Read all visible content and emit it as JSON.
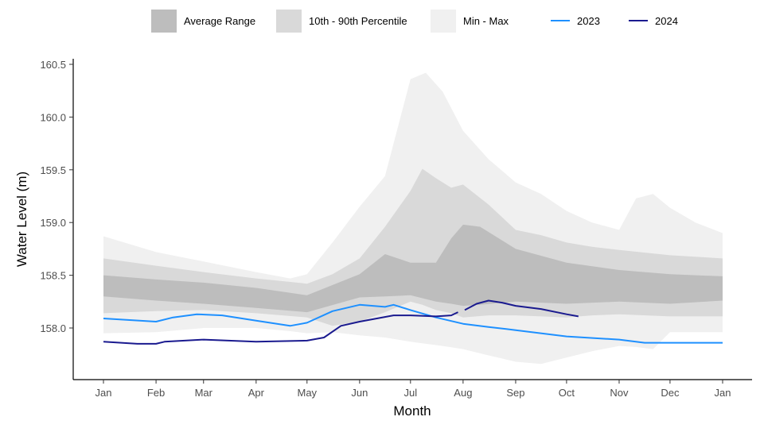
{
  "chart_data": {
    "type": "area",
    "title": "",
    "xlabel": "Month",
    "ylabel": "Water Level (m)",
    "x_unit": "day of year",
    "xlim": [
      0,
      365
    ],
    "ylim": [
      157.51,
      160.55
    ],
    "grid": false,
    "legend_position": "top",
    "x_ticks": [
      {
        "day": 0,
        "label": "Jan"
      },
      {
        "day": 31,
        "label": "Feb"
      },
      {
        "day": 59,
        "label": "Mar"
      },
      {
        "day": 90,
        "label": "Apr"
      },
      {
        "day": 120,
        "label": "May"
      },
      {
        "day": 151,
        "label": "Jun"
      },
      {
        "day": 181,
        "label": "Jul"
      },
      {
        "day": 212,
        "label": "Aug"
      },
      {
        "day": 243,
        "label": "Sep"
      },
      {
        "day": 273,
        "label": "Oct"
      },
      {
        "day": 304,
        "label": "Nov"
      },
      {
        "day": 334,
        "label": "Dec"
      },
      {
        "day": 365,
        "label": "Jan"
      }
    ],
    "y_ticks": [
      {
        "value": 158.0,
        "label": "158.0"
      },
      {
        "value": 158.5,
        "label": "158.5"
      },
      {
        "value": 159.0,
        "label": "159.0"
      },
      {
        "value": 159.5,
        "label": "159.5"
      },
      {
        "value": 160.0,
        "label": "160.0"
      },
      {
        "value": 160.5,
        "label": "160.5"
      }
    ],
    "bands": [
      {
        "name": "Min - Max",
        "color": "#f0f0f0",
        "x": [
          0,
          31,
          59,
          90,
          110,
          120,
          135,
          151,
          166,
          181,
          190,
          200,
          212,
          227,
          243,
          258,
          273,
          288,
          304,
          314,
          324,
          334,
          349,
          365
        ],
        "upper": [
          158.87,
          158.72,
          158.63,
          158.53,
          158.47,
          158.51,
          158.81,
          159.15,
          159.44,
          160.36,
          160.42,
          160.24,
          159.87,
          159.6,
          159.38,
          159.27,
          159.11,
          159.0,
          158.93,
          159.23,
          159.27,
          159.14,
          159.0,
          158.9
        ],
        "lower": [
          157.95,
          157.96,
          158.0,
          158.0,
          157.97,
          157.95,
          157.96,
          157.93,
          157.91,
          157.87,
          157.85,
          157.83,
          157.8,
          157.74,
          157.68,
          157.66,
          157.72,
          157.78,
          157.83,
          157.82,
          157.8,
          157.96,
          157.96,
          157.96
        ]
      },
      {
        "name": "10th - 90th Percentile",
        "color": "#d9d9d9",
        "x": [
          0,
          31,
          59,
          90,
          120,
          135,
          151,
          166,
          181,
          188,
          196,
          205,
          212,
          227,
          243,
          258,
          273,
          288,
          304,
          334,
          365
        ],
        "upper": [
          158.66,
          158.59,
          158.53,
          158.47,
          158.42,
          158.51,
          158.66,
          158.96,
          159.3,
          159.51,
          159.42,
          159.33,
          159.36,
          159.17,
          158.93,
          158.88,
          158.81,
          158.77,
          158.74,
          158.69,
          158.66
        ],
        "lower": [
          158.14,
          158.16,
          158.17,
          158.14,
          158.1,
          158.02,
          158.06,
          158.15,
          158.25,
          158.22,
          158.17,
          158.14,
          158.1,
          158.12,
          158.12,
          158.11,
          158.1,
          158.12,
          158.13,
          158.11,
          158.11
        ]
      },
      {
        "name": "Average Range",
        "color": "#bdbdbd",
        "x": [
          0,
          31,
          59,
          90,
          120,
          151,
          166,
          181,
          196,
          205,
          212,
          222,
          243,
          273,
          304,
          334,
          365
        ],
        "upper": [
          158.5,
          158.46,
          158.43,
          158.38,
          158.31,
          158.51,
          158.7,
          158.62,
          158.62,
          158.85,
          158.98,
          158.96,
          158.75,
          158.62,
          158.55,
          158.51,
          158.49
        ],
        "lower": [
          158.3,
          158.26,
          158.23,
          158.19,
          158.15,
          158.29,
          158.3,
          158.31,
          158.25,
          158.23,
          158.21,
          158.22,
          158.25,
          158.23,
          158.25,
          158.23,
          158.26
        ]
      }
    ],
    "series": [
      {
        "name": "2023",
        "color": "#1e90ff",
        "segments": [
          {
            "x": [
              0,
              31,
              41,
              55,
              70,
              90,
              110,
              120,
              135,
              151,
              166,
              171,
              181,
              196,
              212,
              227,
              243,
              273,
              304,
              319,
              334,
              365
            ],
            "y": [
              158.09,
              158.06,
              158.1,
              158.13,
              158.12,
              158.07,
              158.02,
              158.05,
              158.16,
              158.22,
              158.2,
              158.22,
              158.17,
              158.1,
              158.04,
              158.01,
              157.98,
              157.92,
              157.89,
              157.86,
              157.86,
              157.86
            ]
          }
        ]
      },
      {
        "name": "2024",
        "color": "#1a1a8f",
        "segments": [
          {
            "x": [
              0,
              20,
              31,
              36,
              59,
              90,
              120,
              130,
              140,
              151,
              171,
              181,
              196,
              205,
              209
            ],
            "y": [
              157.87,
              157.85,
              157.85,
              157.87,
              157.89,
              157.87,
              157.88,
              157.91,
              158.02,
              158.06,
              158.12,
              158.12,
              158.11,
              158.12,
              158.15
            ]
          },
          {
            "x": [
              213,
              220,
              227,
              235,
              243,
              258,
              273,
              280
            ],
            "y": [
              158.17,
              158.23,
              158.26,
              158.24,
              158.21,
              158.18,
              158.13,
              158.11
            ]
          }
        ]
      }
    ],
    "legend": {
      "average_range": "Average Range",
      "percentile": "10th - 90th Percentile",
      "min_max": "Min - Max",
      "y2023": "2023",
      "y2024": "2024"
    }
  }
}
